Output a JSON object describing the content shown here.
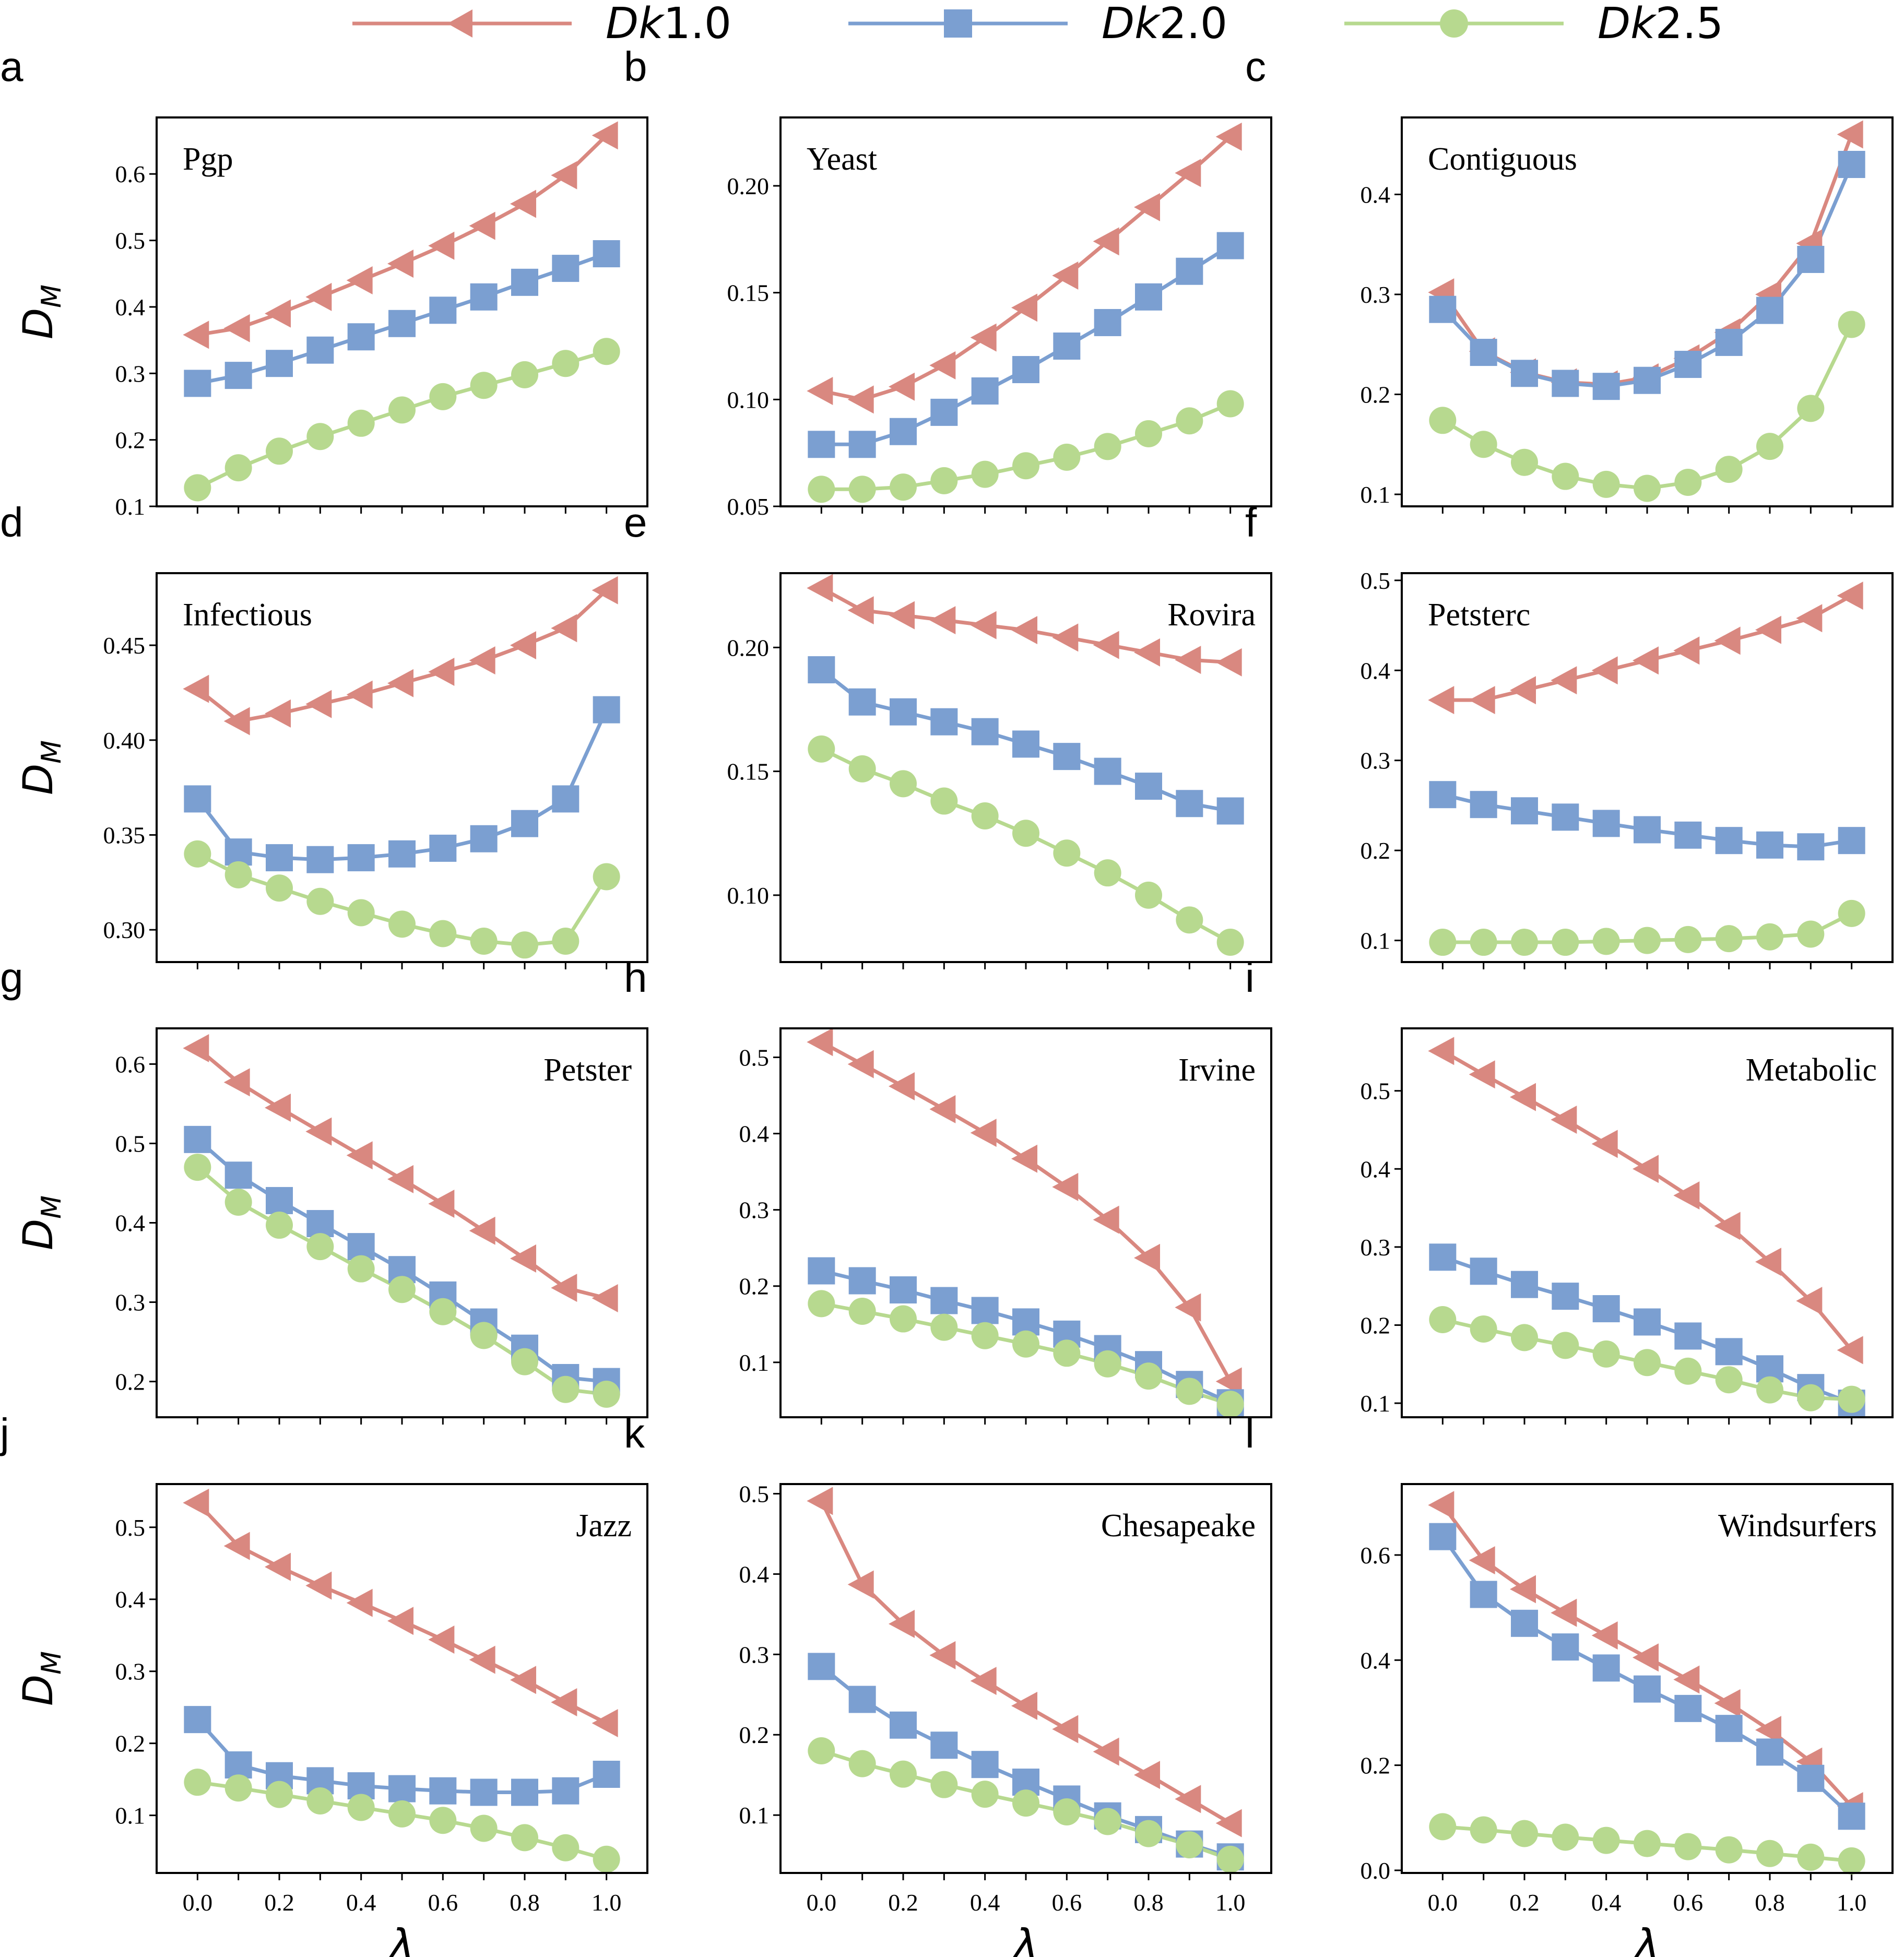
{
  "legend": [
    {
      "name": "Dk1.0",
      "prefix": "Dk",
      "suffix": "1.0",
      "color": "#d98880",
      "marker": "triangle-left"
    },
    {
      "name": "Dk2.0",
      "prefix": "Dk",
      "suffix": "2.0",
      "color": "#7b9fd1",
      "marker": "square"
    },
    {
      "name": "Dk2.5",
      "prefix": "Dk",
      "suffix": "2.5",
      "color": "#b7d98f",
      "marker": "circle"
    }
  ],
  "ylabel": {
    "main": "D",
    "sub": "M"
  },
  "xlabel": "λ",
  "chart_data": [
    {
      "type": "line",
      "letter": "a",
      "title": "Pgp",
      "title_pos": "top-left",
      "x": [
        0.0,
        0.1,
        0.2,
        0.3,
        0.4,
        0.5,
        0.6,
        0.7,
        0.8,
        0.9,
        1.0
      ],
      "ylim": [
        0.1,
        0.685
      ],
      "yticks": [
        0.1,
        0.2,
        0.3,
        0.4,
        0.5,
        0.6
      ],
      "ytick_labels": [
        "0.1",
        "0.2",
        "0.3",
        "0.4",
        "0.5",
        "0.6"
      ],
      "series": [
        {
          "name": "Dk1.0",
          "values": [
            0.358,
            0.368,
            0.39,
            0.415,
            0.44,
            0.465,
            0.492,
            0.522,
            0.555,
            0.598,
            0.658
          ]
        },
        {
          "name": "Dk2.0",
          "values": [
            0.285,
            0.297,
            0.315,
            0.335,
            0.355,
            0.375,
            0.395,
            0.415,
            0.437,
            0.458,
            0.48
          ]
        },
        {
          "name": "Dk2.5",
          "values": [
            0.128,
            0.158,
            0.183,
            0.205,
            0.225,
            0.245,
            0.265,
            0.282,
            0.298,
            0.315,
            0.333
          ]
        }
      ]
    },
    {
      "type": "line",
      "letter": "b",
      "title": "Yeast",
      "title_pos": "top-left",
      "x": [
        0.0,
        0.1,
        0.2,
        0.3,
        0.4,
        0.5,
        0.6,
        0.7,
        0.8,
        0.9,
        1.0
      ],
      "ylim": [
        0.05,
        0.232
      ],
      "yticks": [
        0.05,
        0.1,
        0.15,
        0.2
      ],
      "ytick_labels": [
        "0.05",
        "0.10",
        "0.15",
        "0.20"
      ],
      "series": [
        {
          "name": "Dk1.0",
          "values": [
            0.104,
            0.1,
            0.106,
            0.116,
            0.129,
            0.143,
            0.158,
            0.174,
            0.19,
            0.206,
            0.223
          ]
        },
        {
          "name": "Dk2.0",
          "values": [
            0.079,
            0.079,
            0.085,
            0.094,
            0.104,
            0.114,
            0.125,
            0.136,
            0.148,
            0.16,
            0.172
          ]
        },
        {
          "name": "Dk2.5",
          "values": [
            0.058,
            0.058,
            0.059,
            0.062,
            0.065,
            0.069,
            0.073,
            0.078,
            0.084,
            0.09,
            0.098
          ]
        }
      ]
    },
    {
      "type": "line",
      "letter": "c",
      "title": "Contiguous",
      "title_pos": "top-left",
      "x": [
        0.0,
        0.1,
        0.2,
        0.3,
        0.4,
        0.5,
        0.6,
        0.7,
        0.8,
        0.9,
        1.0
      ],
      "ylim": [
        0.088,
        0.477
      ],
      "yticks": [
        0.1,
        0.2,
        0.3,
        0.4
      ],
      "ytick_labels": [
        "0.1",
        "0.2",
        "0.3",
        "0.4"
      ],
      "series": [
        {
          "name": "Dk1.0",
          "values": [
            0.302,
            0.243,
            0.222,
            0.212,
            0.21,
            0.217,
            0.236,
            0.262,
            0.3,
            0.351,
            0.46
          ]
        },
        {
          "name": "Dk2.0",
          "values": [
            0.285,
            0.242,
            0.221,
            0.211,
            0.208,
            0.214,
            0.23,
            0.252,
            0.284,
            0.335,
            0.43
          ]
        },
        {
          "name": "Dk2.5",
          "values": [
            0.174,
            0.15,
            0.132,
            0.118,
            0.11,
            0.106,
            0.112,
            0.125,
            0.148,
            0.186,
            0.27
          ]
        }
      ]
    },
    {
      "type": "line",
      "letter": "d",
      "title": "Infectious",
      "title_pos": "top-left",
      "x": [
        0.0,
        0.1,
        0.2,
        0.3,
        0.4,
        0.5,
        0.6,
        0.7,
        0.8,
        0.9,
        1.0
      ],
      "ylim": [
        0.283,
        0.488
      ],
      "yticks": [
        0.3,
        0.35,
        0.4,
        0.45
      ],
      "ytick_labels": [
        "0.30",
        "0.35",
        "0.40",
        "0.45"
      ],
      "series": [
        {
          "name": "Dk1.0",
          "values": [
            0.427,
            0.41,
            0.414,
            0.419,
            0.424,
            0.43,
            0.436,
            0.442,
            0.45,
            0.459,
            0.479
          ]
        },
        {
          "name": "Dk2.0",
          "values": [
            0.369,
            0.341,
            0.338,
            0.337,
            0.338,
            0.34,
            0.343,
            0.348,
            0.356,
            0.369,
            0.416
          ]
        },
        {
          "name": "Dk2.5",
          "values": [
            0.34,
            0.329,
            0.322,
            0.315,
            0.309,
            0.303,
            0.298,
            0.294,
            0.292,
            0.294,
            0.328
          ]
        }
      ]
    },
    {
      "type": "line",
      "letter": "e",
      "title": "Rovira",
      "title_pos": "top-right",
      "x": [
        0.0,
        0.1,
        0.2,
        0.3,
        0.4,
        0.5,
        0.6,
        0.7,
        0.8,
        0.9,
        1.0
      ],
      "ylim": [
        0.073,
        0.23
      ],
      "yticks": [
        0.1,
        0.15,
        0.2
      ],
      "ytick_labels": [
        "0.10",
        "0.15",
        "0.20"
      ],
      "series": [
        {
          "name": "Dk1.0",
          "values": [
            0.224,
            0.215,
            0.213,
            0.211,
            0.209,
            0.207,
            0.204,
            0.201,
            0.198,
            0.195,
            0.194
          ]
        },
        {
          "name": "Dk2.0",
          "values": [
            0.191,
            0.178,
            0.174,
            0.17,
            0.166,
            0.161,
            0.156,
            0.15,
            0.144,
            0.137,
            0.134
          ]
        },
        {
          "name": "Dk2.5",
          "values": [
            0.159,
            0.151,
            0.145,
            0.138,
            0.132,
            0.125,
            0.117,
            0.109,
            0.1,
            0.09,
            0.081
          ]
        }
      ]
    },
    {
      "type": "line",
      "letter": "f",
      "title": "Petsterc",
      "title_pos": "top-left",
      "x": [
        0.0,
        0.1,
        0.2,
        0.3,
        0.4,
        0.5,
        0.6,
        0.7,
        0.8,
        0.9,
        1.0
      ],
      "ylim": [
        0.076,
        0.508
      ],
      "yticks": [
        0.1,
        0.2,
        0.3,
        0.4,
        0.5
      ],
      "ytick_labels": [
        "0.1",
        "0.2",
        "0.3",
        "0.4",
        "0.5"
      ],
      "series": [
        {
          "name": "Dk1.0",
          "values": [
            0.367,
            0.367,
            0.378,
            0.389,
            0.4,
            0.411,
            0.422,
            0.433,
            0.445,
            0.458,
            0.483
          ]
        },
        {
          "name": "Dk2.0",
          "values": [
            0.262,
            0.251,
            0.244,
            0.237,
            0.23,
            0.223,
            0.217,
            0.211,
            0.206,
            0.204,
            0.211
          ]
        },
        {
          "name": "Dk2.5",
          "values": [
            0.098,
            0.098,
            0.098,
            0.098,
            0.099,
            0.1,
            0.101,
            0.102,
            0.104,
            0.107,
            0.13
          ]
        }
      ]
    },
    {
      "type": "line",
      "letter": "g",
      "title": "Petster",
      "title_pos": "top-right",
      "x": [
        0.0,
        0.1,
        0.2,
        0.3,
        0.4,
        0.5,
        0.6,
        0.7,
        0.8,
        0.9,
        1.0
      ],
      "ylim": [
        0.155,
        0.645
      ],
      "yticks": [
        0.2,
        0.3,
        0.4,
        0.5,
        0.6
      ],
      "ytick_labels": [
        "0.2",
        "0.3",
        "0.4",
        "0.5",
        "0.6"
      ],
      "series": [
        {
          "name": "Dk1.0",
          "values": [
            0.62,
            0.577,
            0.545,
            0.515,
            0.485,
            0.455,
            0.424,
            0.39,
            0.355,
            0.318,
            0.305
          ]
        },
        {
          "name": "Dk2.0",
          "values": [
            0.505,
            0.46,
            0.428,
            0.399,
            0.37,
            0.341,
            0.309,
            0.275,
            0.242,
            0.205,
            0.2
          ]
        },
        {
          "name": "Dk2.5",
          "values": [
            0.47,
            0.426,
            0.397,
            0.37,
            0.342,
            0.316,
            0.288,
            0.258,
            0.225,
            0.19,
            0.184
          ]
        }
      ]
    },
    {
      "type": "line",
      "letter": "h",
      "title": "Irvine",
      "title_pos": "top-right",
      "x": [
        0.0,
        0.1,
        0.2,
        0.3,
        0.4,
        0.5,
        0.6,
        0.7,
        0.8,
        0.9,
        1.0
      ],
      "ylim": [
        0.028,
        0.538
      ],
      "yticks": [
        0.1,
        0.2,
        0.3,
        0.4,
        0.5
      ],
      "ytick_labels": [
        "0.1",
        "0.2",
        "0.3",
        "0.4",
        "0.5"
      ],
      "series": [
        {
          "name": "Dk1.0",
          "values": [
            0.52,
            0.491,
            0.462,
            0.432,
            0.401,
            0.367,
            0.33,
            0.287,
            0.237,
            0.172,
            0.075
          ]
        },
        {
          "name": "Dk2.0",
          "values": [
            0.22,
            0.207,
            0.195,
            0.181,
            0.168,
            0.153,
            0.137,
            0.118,
            0.097,
            0.071,
            0.047
          ]
        },
        {
          "name": "Dk2.5",
          "values": [
            0.177,
            0.167,
            0.157,
            0.146,
            0.135,
            0.124,
            0.112,
            0.098,
            0.082,
            0.062,
            0.045
          ]
        }
      ]
    },
    {
      "type": "line",
      "letter": "i",
      "title": "Metabolic",
      "title_pos": "top-right",
      "x": [
        0.0,
        0.1,
        0.2,
        0.3,
        0.4,
        0.5,
        0.6,
        0.7,
        0.8,
        0.9,
        1.0
      ],
      "ylim": [
        0.082,
        0.58
      ],
      "yticks": [
        0.1,
        0.2,
        0.3,
        0.4,
        0.5
      ],
      "ytick_labels": [
        "0.1",
        "0.2",
        "0.3",
        "0.4",
        "0.5"
      ],
      "series": [
        {
          "name": "Dk1.0",
          "values": [
            0.551,
            0.521,
            0.492,
            0.463,
            0.432,
            0.4,
            0.366,
            0.327,
            0.281,
            0.231,
            0.168
          ]
        },
        {
          "name": "Dk2.0",
          "values": [
            0.287,
            0.269,
            0.252,
            0.237,
            0.221,
            0.204,
            0.186,
            0.166,
            0.144,
            0.12,
            0.1
          ]
        },
        {
          "name": "Dk2.5",
          "values": [
            0.207,
            0.195,
            0.184,
            0.174,
            0.163,
            0.152,
            0.141,
            0.13,
            0.117,
            0.107,
            0.105
          ]
        }
      ]
    },
    {
      "type": "line",
      "letter": "j",
      "title": "Jazz",
      "title_pos": "top-right",
      "x": [
        0.0,
        0.1,
        0.2,
        0.3,
        0.4,
        0.5,
        0.6,
        0.7,
        0.8,
        0.9,
        1.0
      ],
      "ylim": [
        0.02,
        0.56
      ],
      "yticks": [
        0.1,
        0.2,
        0.3,
        0.4,
        0.5
      ],
      "ytick_labels": [
        "0.1",
        "0.2",
        "0.3",
        "0.4",
        "0.5"
      ],
      "series": [
        {
          "name": "Dk1.0",
          "values": [
            0.534,
            0.474,
            0.445,
            0.419,
            0.395,
            0.37,
            0.344,
            0.316,
            0.288,
            0.257,
            0.228
          ]
        },
        {
          "name": "Dk2.0",
          "values": [
            0.233,
            0.17,
            0.155,
            0.148,
            0.141,
            0.137,
            0.134,
            0.132,
            0.132,
            0.134,
            0.157
          ]
        },
        {
          "name": "Dk2.5",
          "values": [
            0.146,
            0.138,
            0.129,
            0.12,
            0.111,
            0.102,
            0.093,
            0.082,
            0.069,
            0.055,
            0.039
          ]
        }
      ]
    },
    {
      "type": "line",
      "letter": "k",
      "title": "Chesapeake",
      "title_pos": "top-right",
      "x": [
        0.0,
        0.1,
        0.2,
        0.3,
        0.4,
        0.5,
        0.6,
        0.7,
        0.8,
        0.9,
        1.0
      ],
      "ylim": [
        0.028,
        0.512
      ],
      "yticks": [
        0.1,
        0.2,
        0.3,
        0.4,
        0.5
      ],
      "ytick_labels": [
        "0.1",
        "0.2",
        "0.3",
        "0.4",
        "0.5"
      ],
      "series": [
        {
          "name": "Dk1.0",
          "values": [
            0.491,
            0.387,
            0.338,
            0.299,
            0.267,
            0.236,
            0.207,
            0.179,
            0.15,
            0.12,
            0.09
          ]
        },
        {
          "name": "Dk2.0",
          "values": [
            0.285,
            0.244,
            0.212,
            0.187,
            0.163,
            0.141,
            0.12,
            0.099,
            0.082,
            0.064,
            0.048
          ]
        },
        {
          "name": "Dk2.5",
          "values": [
            0.18,
            0.164,
            0.151,
            0.138,
            0.126,
            0.115,
            0.104,
            0.092,
            0.077,
            0.063,
            0.045
          ]
        }
      ]
    },
    {
      "type": "line",
      "letter": "l",
      "title": "Windsurfers",
      "title_pos": "top-right",
      "x": [
        0.0,
        0.1,
        0.2,
        0.3,
        0.4,
        0.5,
        0.6,
        0.7,
        0.8,
        0.9,
        1.0
      ],
      "ylim": [
        -0.005,
        0.735
      ],
      "yticks": [
        0.0,
        0.2,
        0.4,
        0.6
      ],
      "ytick_labels": [
        "0.0",
        "0.2",
        "0.4",
        "0.6"
      ],
      "series": [
        {
          "name": "Dk1.0",
          "values": [
            0.695,
            0.59,
            0.535,
            0.49,
            0.447,
            0.405,
            0.363,
            0.318,
            0.267,
            0.207,
            0.122
          ]
        },
        {
          "name": "Dk2.0",
          "values": [
            0.635,
            0.525,
            0.47,
            0.425,
            0.385,
            0.345,
            0.308,
            0.27,
            0.225,
            0.175,
            0.103
          ]
        },
        {
          "name": "Dk2.5",
          "values": [
            0.083,
            0.077,
            0.07,
            0.063,
            0.057,
            0.051,
            0.045,
            0.039,
            0.032,
            0.025,
            0.018
          ]
        }
      ]
    }
  ]
}
